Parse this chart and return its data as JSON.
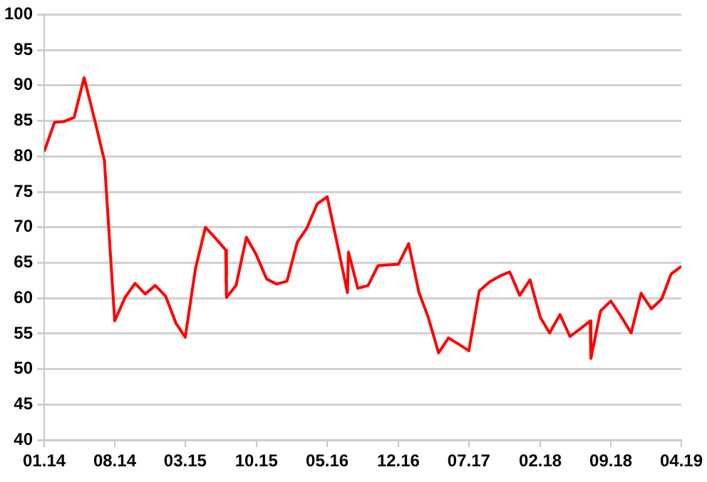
{
  "chart_data": {
    "type": "line",
    "x": [
      "2014-01",
      "2014-02",
      "2014-03",
      "2014-04",
      "2014-05",
      "2014-06",
      "2014-07",
      "2014-08",
      "2014-09",
      "2014-10",
      "2014-11",
      "2014-12",
      "2015-01",
      "2015-02",
      "2015-03",
      "2015-04",
      "2015-05",
      "2015-06",
      "2015-07-01",
      "2015-07-03",
      "2015-08",
      "2015-09",
      "2015-10",
      "2015-11",
      "2015-12",
      "2016-01",
      "2016-02",
      "2016-03",
      "2016-04",
      "2016-05",
      "2016-06",
      "2016-07-01",
      "2016-07-04",
      "2016-08",
      "2016-09",
      "2016-10",
      "2016-11",
      "2016-12",
      "2017-01",
      "2017-02",
      "2017-03",
      "2017-04",
      "2017-05",
      "2017-06",
      "2017-07",
      "2017-08",
      "2017-09",
      "2017-10",
      "2017-11",
      "2017-12",
      "2018-01",
      "2018-02",
      "2018-03",
      "2018-04",
      "2018-05",
      "2018-06",
      "2018-07-01",
      "2018-07-03",
      "2018-08",
      "2018-09",
      "2018-10",
      "2018-11",
      "2018-12",
      "2019-01",
      "2019-02",
      "2019-03",
      "2019-04"
    ],
    "series": [
      {
        "color": "#ff0000",
        "values": [
          80.7,
          84.8,
          84.9,
          85.5,
          91.1,
          85.3,
          79.4,
          56.8,
          60.1,
          62.1,
          60.6,
          61.8,
          60.3,
          56.5,
          54.5,
          64.2,
          70.0,
          68.4,
          66.8,
          60.1,
          61.8,
          68.6,
          66.1,
          62.7,
          62.0,
          62.4,
          67.9,
          69.9,
          73.3,
          74.3,
          67.5,
          60.8,
          66.5,
          61.4,
          61.8,
          64.6,
          64.7,
          64.8,
          67.7,
          60.8,
          57.3,
          52.3,
          54.4,
          53.5,
          52.6,
          61.0,
          62.3,
          63.1,
          63.7,
          60.4,
          62.6,
          57.3,
          55.1,
          57.7,
          54.6,
          55.7,
          56.8,
          51.5,
          58.2,
          59.6,
          57.5,
          55.1,
          60.7,
          58.5,
          59.9,
          63.4,
          64.5
        ]
      }
    ],
    "xlim": [
      "2014-01",
      "2019-04"
    ],
    "xticks": [
      {
        "value": "2014-01",
        "label": "01.14"
      },
      {
        "value": "2014-08",
        "label": "08.14"
      },
      {
        "value": "2015-03",
        "label": "03.15"
      },
      {
        "value": "2015-10",
        "label": "10.15"
      },
      {
        "value": "2016-05",
        "label": "05.16"
      },
      {
        "value": "2016-12",
        "label": "12.16"
      },
      {
        "value": "2017-07",
        "label": "07.17"
      },
      {
        "value": "2018-02",
        "label": "02.18"
      },
      {
        "value": "2018-09",
        "label": "09.18"
      },
      {
        "value": "2019-04",
        "label": "04.19"
      }
    ],
    "ylim": [
      40,
      100
    ],
    "yticks": [
      40,
      45,
      50,
      55,
      60,
      65,
      70,
      75,
      80,
      85,
      90,
      95,
      100
    ],
    "grid": "y",
    "marker": "none",
    "line_style": "solid",
    "legend": false
  }
}
